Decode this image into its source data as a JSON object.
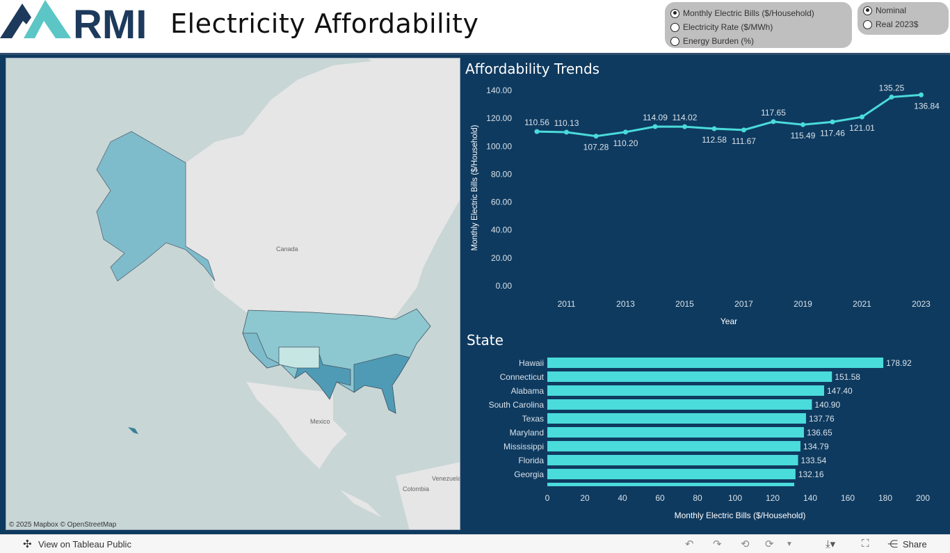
{
  "header": {
    "logo_text": "RMI",
    "title": "Electricity Affordability"
  },
  "metric_selector": {
    "options": [
      "Monthly Electric Bills ($/Household)",
      "Electricity Rate ($/MWh)",
      "Energy Burden (%)"
    ],
    "selected": 0
  },
  "dollar_selector": {
    "options": [
      "Nominal",
      "Real 2023$"
    ],
    "selected": 0
  },
  "map": {
    "labels": {
      "canada": "Canada",
      "mexico": "Mexico",
      "venezuela": "Venezuela",
      "colombia": "Colombia"
    },
    "attribution": "© 2025 Mapbox  © OpenStreetMap",
    "fill_color": "#5ea7bd"
  },
  "trends": {
    "title": "Affordability Trends"
  },
  "state": {
    "title": "State"
  },
  "chart_data": [
    {
      "type": "line",
      "title": "Affordability Trends",
      "xlabel": "Year",
      "ylabel": "Monthly Electric Bills ($/Household)",
      "x": [
        2010,
        2011,
        2012,
        2013,
        2014,
        2015,
        2016,
        2017,
        2018,
        2019,
        2020,
        2021,
        2022,
        2023
      ],
      "values": [
        110.56,
        110.13,
        107.28,
        110.2,
        114.09,
        114.02,
        112.58,
        111.67,
        117.65,
        115.49,
        117.46,
        121.01,
        135.25,
        136.84
      ],
      "data_labels": [
        "110.56",
        "110.13",
        "107.28",
        "110.20",
        "114.09",
        "114.02",
        "112.58",
        "111.67",
        "117.65",
        "115.49",
        "117.46",
        "121.01",
        "135.25",
        "136.84"
      ],
      "ylim": [
        0,
        140
      ],
      "yticks": [
        "0.00",
        "20.00",
        "40.00",
        "60.00",
        "80.00",
        "100.00",
        "120.00",
        "140.00"
      ],
      "xticks": [
        "2011",
        "2013",
        "2015",
        "2017",
        "2019",
        "2021",
        "2023"
      ],
      "color": "#4adbdb",
      "grid": false
    },
    {
      "type": "bar",
      "title": "State",
      "orientation": "horizontal",
      "xlabel": "Monthly Electric Bills ($/Household)",
      "categories": [
        "Hawaii",
        "Connecticut",
        "Alabama",
        "South Carolina",
        "Texas",
        "Maryland",
        "Mississippi",
        "Florida",
        "Georgia"
      ],
      "values": [
        178.92,
        151.58,
        147.4,
        140.9,
        137.76,
        136.65,
        134.79,
        133.54,
        132.16
      ],
      "data_labels": [
        "178.92",
        "151.58",
        "147.40",
        "140.90",
        "137.76",
        "136.65",
        "134.79",
        "133.54",
        "132.16"
      ],
      "xlim": [
        0,
        200
      ],
      "xticks": [
        "0",
        "20",
        "40",
        "60",
        "80",
        "100",
        "120",
        "140",
        "160",
        "180",
        "200"
      ],
      "color": "#4adbdb",
      "grid": false
    }
  ],
  "footer": {
    "view_label": "View on Tableau Public",
    "share_label": "Share"
  }
}
